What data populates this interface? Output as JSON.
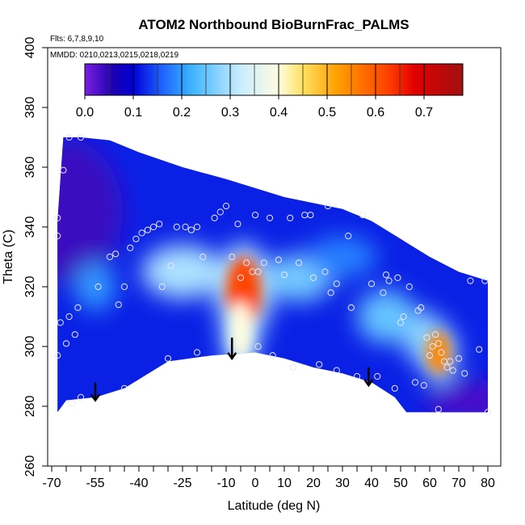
{
  "chart_data": {
    "type": "heatmap",
    "title": "ATOM2 Northbound BioBurnFrac_PALMS",
    "notes": [
      "Flts: 6,7,8,9,10",
      "MMDD: 0210,0213,0215,0218,0219"
    ],
    "xlabel": "Latitude (deg N)",
    "ylabel": "Theta (C)",
    "xlim": [
      -70,
      80
    ],
    "ylim": [
      260,
      400
    ],
    "x_ticks": [
      -70,
      -55,
      -40,
      -25,
      -10,
      0,
      10,
      20,
      30,
      40,
      50,
      60,
      70,
      80
    ],
    "x_minor_ticks": [
      -65,
      -60,
      -50,
      -45,
      -35,
      -30,
      -20,
      -15,
      -5,
      5,
      15,
      25,
      35,
      45,
      55,
      65,
      75
    ],
    "y_ticks": [
      260,
      280,
      300,
      320,
      340,
      360,
      380,
      400
    ],
    "colorbar": {
      "min": 0.0,
      "max": 0.78,
      "ticks": [
        0.0,
        0.1,
        0.2,
        0.3,
        0.4,
        0.5,
        0.6,
        0.7
      ],
      "colors": [
        "#7a1fe0",
        "#1a00b0",
        "#0000d8",
        "#1e64ff",
        "#3cb4ff",
        "#c8ecff",
        "#fffde0",
        "#ffe060",
        "#ffa000",
        "#ff3c00",
        "#e00000",
        "#a01010"
      ],
      "stops": [
        0.0,
        0.06,
        0.1,
        0.16,
        0.22,
        0.32,
        0.4,
        0.45,
        0.52,
        0.63,
        0.68,
        0.78
      ]
    },
    "data_top_boundary": [
      [
        -68,
        342
      ],
      [
        -66,
        370
      ],
      [
        -60,
        370
      ],
      [
        -50,
        369
      ],
      [
        -40,
        365
      ],
      [
        -25,
        360
      ],
      [
        -10,
        356
      ],
      [
        0,
        353
      ],
      [
        10,
        350
      ],
      [
        20,
        348
      ],
      [
        30,
        346
      ],
      [
        40,
        342
      ],
      [
        50,
        336
      ],
      [
        60,
        330
      ],
      [
        70,
        325
      ],
      [
        80,
        322
      ]
    ],
    "data_bottom_boundary": [
      [
        -68,
        278
      ],
      [
        -65,
        282
      ],
      [
        -55,
        283
      ],
      [
        -45,
        286
      ],
      [
        -30,
        295
      ],
      [
        -15,
        297
      ],
      [
        0,
        298
      ],
      [
        10,
        296
      ],
      [
        20,
        293
      ],
      [
        30,
        291
      ],
      [
        40,
        288
      ],
      [
        48,
        283
      ],
      [
        52,
        278
      ],
      [
        80,
        278
      ]
    ],
    "field_blobs": [
      {
        "x": -4,
        "y": 318,
        "value": 0.62,
        "rx": 6,
        "ry": 12
      },
      {
        "x": -5,
        "y": 305,
        "value": 0.4,
        "rx": 4,
        "ry": 10
      },
      {
        "x": 63,
        "y": 298,
        "value": 0.55,
        "rx": 4,
        "ry": 7
      },
      {
        "x": 58,
        "y": 303,
        "value": 0.28,
        "rx": 7,
        "ry": 9
      },
      {
        "x": -25,
        "y": 325,
        "value": 0.3,
        "rx": 14,
        "ry": 9
      },
      {
        "x": 15,
        "y": 323,
        "value": 0.26,
        "rx": 12,
        "ry": 8
      },
      {
        "x": 45,
        "y": 310,
        "value": 0.25,
        "rx": 10,
        "ry": 9
      },
      {
        "x": -55,
        "y": 320,
        "value": 0.2,
        "rx": 7,
        "ry": 8
      },
      {
        "x": 30,
        "y": 330,
        "value": 0.18,
        "rx": 12,
        "ry": 7
      }
    ],
    "observations": [
      {
        "x": -68,
        "y": 297
      },
      {
        "x": -67,
        "y": 308
      },
      {
        "x": -68,
        "y": 337
      },
      {
        "x": -68,
        "y": 343
      },
      {
        "x": -66,
        "y": 359
      },
      {
        "x": -64,
        "y": 370
      },
      {
        "x": -60,
        "y": 370
      },
      {
        "x": -65,
        "y": 301
      },
      {
        "x": -64,
        "y": 310
      },
      {
        "x": -62,
        "y": 304
      },
      {
        "x": -61,
        "y": 313
      },
      {
        "x": -63,
        "y": 281
      },
      {
        "x": -60,
        "y": 283
      },
      {
        "x": -54,
        "y": 320
      },
      {
        "x": -50,
        "y": 330
      },
      {
        "x": -48,
        "y": 331
      },
      {
        "x": -47,
        "y": 314
      },
      {
        "x": -45,
        "y": 320
      },
      {
        "x": -43,
        "y": 333
      },
      {
        "x": -41,
        "y": 336
      },
      {
        "x": -39,
        "y": 338
      },
      {
        "x": -37,
        "y": 339
      },
      {
        "x": -35,
        "y": 340
      },
      {
        "x": -33,
        "y": 341
      },
      {
        "x": -45,
        "y": 286
      },
      {
        "x": -32,
        "y": 320
      },
      {
        "x": -30,
        "y": 296
      },
      {
        "x": -29,
        "y": 327
      },
      {
        "x": -27,
        "y": 340
      },
      {
        "x": -24,
        "y": 340
      },
      {
        "x": -22,
        "y": 339
      },
      {
        "x": -20,
        "y": 340
      },
      {
        "x": -20,
        "y": 298
      },
      {
        "x": -18,
        "y": 330
      },
      {
        "x": -14,
        "y": 343
      },
      {
        "x": -12,
        "y": 345
      },
      {
        "x": -10,
        "y": 347
      },
      {
        "x": -8,
        "y": 330
      },
      {
        "x": -6,
        "y": 341
      },
      {
        "x": -5,
        "y": 323
      },
      {
        "x": -3,
        "y": 328
      },
      {
        "x": -1,
        "y": 325
      },
      {
        "x": 0,
        "y": 344
      },
      {
        "x": 1,
        "y": 325
      },
      {
        "x": 1,
        "y": 300
      },
      {
        "x": 3,
        "y": 328
      },
      {
        "x": 5,
        "y": 343
      },
      {
        "x": 6,
        "y": 297
      },
      {
        "x": 8,
        "y": 329
      },
      {
        "x": 10,
        "y": 324
      },
      {
        "x": 12,
        "y": 343
      },
      {
        "x": 13,
        "y": 293
      },
      {
        "x": 15,
        "y": 328
      },
      {
        "x": 17,
        "y": 344
      },
      {
        "x": 19,
        "y": 344
      },
      {
        "x": 20,
        "y": 323
      },
      {
        "x": 22,
        "y": 294
      },
      {
        "x": 24,
        "y": 325
      },
      {
        "x": 25,
        "y": 347
      },
      {
        "x": 26,
        "y": 318
      },
      {
        "x": 28,
        "y": 321
      },
      {
        "x": 28,
        "y": 292
      },
      {
        "x": 32,
        "y": 337
      },
      {
        "x": 33,
        "y": 313
      },
      {
        "x": 35,
        "y": 290
      },
      {
        "x": 37,
        "y": 344
      },
      {
        "x": 40,
        "y": 321
      },
      {
        "x": 42,
        "y": 290
      },
      {
        "x": 44,
        "y": 318
      },
      {
        "x": 45,
        "y": 324
      },
      {
        "x": 46,
        "y": 322
      },
      {
        "x": 48,
        "y": 286
      },
      {
        "x": 49,
        "y": 323
      },
      {
        "x": 50,
        "y": 308
      },
      {
        "x": 51,
        "y": 310
      },
      {
        "x": 53,
        "y": 320
      },
      {
        "x": 55,
        "y": 288
      },
      {
        "x": 56,
        "y": 312
      },
      {
        "x": 57,
        "y": 313
      },
      {
        "x": 58,
        "y": 287
      },
      {
        "x": 59,
        "y": 303
      },
      {
        "x": 60,
        "y": 297
      },
      {
        "x": 61,
        "y": 300
      },
      {
        "x": 62,
        "y": 304
      },
      {
        "x": 63,
        "y": 301
      },
      {
        "x": 64,
        "y": 298
      },
      {
        "x": 65,
        "y": 295
      },
      {
        "x": 66,
        "y": 293
      },
      {
        "x": 67,
        "y": 295
      },
      {
        "x": 68,
        "y": 292
      },
      {
        "x": 63,
        "y": 279
      },
      {
        "x": 70,
        "y": 296
      },
      {
        "x": 72,
        "y": 291
      },
      {
        "x": 74,
        "y": 322
      },
      {
        "x": 77,
        "y": 299
      },
      {
        "x": 79,
        "y": 322
      },
      {
        "x": 80,
        "y": 278
      }
    ],
    "arrows": [
      {
        "x": -55,
        "y_top": 288,
        "y_bottom": 282
      },
      {
        "x": -8,
        "y_top": 303,
        "y_bottom": 296
      },
      {
        "x": 39,
        "y_top": 293,
        "y_bottom": 287
      }
    ]
  }
}
